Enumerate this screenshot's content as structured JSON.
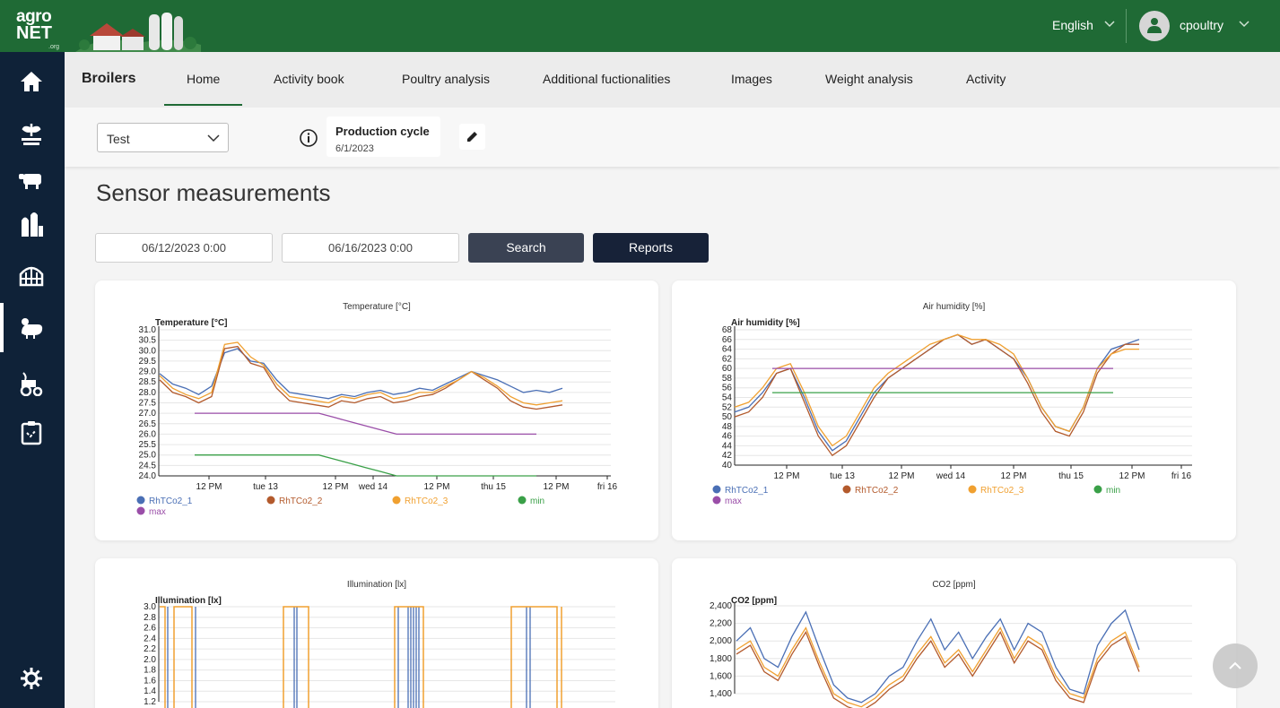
{
  "header": {
    "logo_line1": "agro",
    "logo_line2": "NET",
    "logo_suffix": ".org",
    "language": "English",
    "username": "cpoultry"
  },
  "sidebar": {
    "icons": [
      "home-icon",
      "seedling-icon",
      "livestock-icon",
      "silo-icon",
      "greenhouse-icon",
      "poultry-icon",
      "tractor-icon",
      "clipboard-icon",
      "gear-icon"
    ]
  },
  "nav": {
    "brand": "Broilers",
    "tabs": [
      "Home",
      "Activity book",
      "Poultry analysis",
      "Additional fuctionalities",
      "Images",
      "Weight analysis",
      "Activity"
    ],
    "active_tab": "Home"
  },
  "filters": {
    "object_select": "Test",
    "production_cycle_label": "Production cycle",
    "production_cycle_date": "6/1/2023"
  },
  "main": {
    "title": "Sensor measurements",
    "date_from": "06/12/2023 0:00",
    "date_to": "06/16/2023 0:00",
    "search_label": "Search",
    "reports_label": "Reports"
  },
  "colors": {
    "rhtco2_1": "#4a6fb5",
    "rhtco2_2": "#b35a2c",
    "rhtco2_3": "#f0a030",
    "min": "#3aa048",
    "max": "#9a4ea8"
  },
  "chart_data": [
    {
      "type": "line",
      "title": "Temperature [°C]",
      "ylabel": "Temperature [°C]",
      "ylim": [
        24.0,
        31.0
      ],
      "yticks": [
        "31.0",
        "30.5",
        "30.0",
        "29.5",
        "29.0",
        "28.5",
        "28.0",
        "27.5",
        "27.0",
        "26.5",
        "26.0",
        "25.5",
        "25.0",
        "24.5",
        "24.0"
      ],
      "xticks": [
        "12 PM",
        "tue 13",
        "12 PM",
        "wed 14",
        "12 PM",
        "thu 15",
        "12 PM",
        "fri 16"
      ],
      "legend": [
        "RhTCo2_1",
        "RhTCo2_2",
        "RhTCo2_3",
        "min",
        "max"
      ],
      "series": [
        {
          "name": "RhTCo2_1",
          "values": [
            28.9,
            28.4,
            28.2,
            27.9,
            28.3,
            29.9,
            30.1,
            29.5,
            29.4,
            28.6,
            28.0,
            27.9,
            27.8,
            27.7,
            27.9,
            27.8,
            28.0,
            28.1,
            27.9,
            28.0,
            28.2,
            28.1,
            28.4,
            28.7,
            29.0,
            28.8,
            28.6,
            28.3,
            28.0,
            28.1,
            28.0,
            28.2
          ]
        },
        {
          "name": "RhTCo2_2",
          "values": [
            28.6,
            28.0,
            27.8,
            27.5,
            27.8,
            30.1,
            30.2,
            29.4,
            29.2,
            28.2,
            27.6,
            27.5,
            27.4,
            27.3,
            27.6,
            27.5,
            27.7,
            27.8,
            27.5,
            27.6,
            27.8,
            27.9,
            28.2,
            28.6,
            29.0,
            28.6,
            28.2,
            27.6,
            27.3,
            27.2,
            27.3,
            27.4
          ]
        },
        {
          "name": "RhTCo2_3",
          "values": [
            28.8,
            28.2,
            27.9,
            27.7,
            28.0,
            30.3,
            30.4,
            29.7,
            29.3,
            28.4,
            27.8,
            27.7,
            27.6,
            27.5,
            27.8,
            27.7,
            27.9,
            28.0,
            27.7,
            27.8,
            28.0,
            28.0,
            28.3,
            28.6,
            29.0,
            28.7,
            28.3,
            27.8,
            27.5,
            27.4,
            27.5,
            27.6
          ]
        },
        {
          "name": "min",
          "values": [
            25.0,
            25.0,
            25.0,
            25.0,
            25.0,
            25.0,
            25.0,
            25.0,
            25.0,
            24.8,
            24.6,
            24.4,
            24.2,
            24.0,
            24.0,
            24.0,
            24.0,
            24.0,
            24.0,
            24.0,
            24.0,
            24.0,
            24.0
          ]
        },
        {
          "name": "max",
          "values": [
            27.0,
            27.0,
            27.0,
            27.0,
            27.0,
            27.0,
            27.0,
            27.0,
            27.0,
            26.8,
            26.6,
            26.4,
            26.2,
            26.0,
            26.0,
            26.0,
            26.0,
            26.0,
            26.0,
            26.0,
            26.0,
            26.0,
            26.0
          ]
        }
      ]
    },
    {
      "type": "line",
      "title": "Air humidity [%]",
      "ylabel": "Air humidity [%]",
      "ylim": [
        40,
        68
      ],
      "yticks": [
        "68",
        "66",
        "64",
        "62",
        "60",
        "58",
        "56",
        "54",
        "52",
        "50",
        "48",
        "46",
        "44",
        "42",
        "40"
      ],
      "xticks": [
        "12 PM",
        "tue 13",
        "12 PM",
        "wed 14",
        "12 PM",
        "thu 15",
        "12 PM",
        "fri 16"
      ],
      "legend": [
        "RhTCo2_1",
        "RhTCo2_2",
        "RhTCo2_3",
        "min",
        "max"
      ],
      "series": [
        {
          "name": "RhTCo2_1",
          "values": [
            51,
            52,
            55,
            59,
            60,
            54,
            47,
            43,
            45,
            50,
            55,
            58,
            60,
            62,
            64,
            66,
            67,
            65,
            66,
            64,
            62,
            58,
            52,
            48,
            47,
            52,
            60,
            64,
            65,
            66
          ]
        },
        {
          "name": "RhTCo2_2",
          "values": [
            50,
            51,
            54,
            59,
            60,
            53,
            46,
            42,
            44,
            49,
            54,
            58,
            60,
            62,
            64,
            66,
            67,
            65,
            66,
            64,
            62,
            57,
            51,
            47,
            46,
            51,
            59,
            63,
            65,
            65
          ]
        },
        {
          "name": "RhTCo2_3",
          "values": [
            52,
            53,
            56,
            60,
            61,
            55,
            48,
            44,
            46,
            51,
            56,
            59,
            61,
            63,
            65,
            66,
            67,
            66,
            66,
            65,
            63,
            58,
            52,
            48,
            47,
            52,
            60,
            63,
            64,
            64
          ]
        },
        {
          "name": "max",
          "values": [
            60,
            60,
            60,
            60,
            60,
            60,
            60,
            60,
            60,
            60,
            60,
            60,
            60,
            60,
            60,
            60,
            60,
            60,
            60,
            60,
            60
          ]
        },
        {
          "name": "min",
          "values": [
            55,
            55,
            55,
            55,
            55,
            55,
            55,
            55,
            55,
            55,
            55,
            55,
            55,
            55,
            55,
            55,
            55,
            55,
            55,
            55,
            55
          ]
        }
      ]
    },
    {
      "type": "line",
      "title": "Illumination [lx]",
      "ylabel": "Illumination [lx]",
      "yticks": [
        "3.0",
        "2.8",
        "2.6",
        "2.4",
        "2.2",
        "2.0",
        "1.8",
        "1.6",
        "1.4",
        "1.2"
      ]
    },
    {
      "type": "line",
      "title": "CO2 [ppm]",
      "ylabel": "CO2 [ppm]",
      "yticks": [
        "2,400",
        "2,200",
        "2,000",
        "1,800",
        "1,600",
        "1,400"
      ],
      "series": [
        {
          "name": "RhTCo2_1",
          "values": [
            2000,
            2150,
            1800,
            1700,
            2050,
            2330,
            1900,
            1500,
            1350,
            1300,
            1400,
            1600,
            1700,
            2000,
            2250,
            1900,
            2100,
            1800,
            2050,
            2250,
            1900,
            2200,
            2100,
            1700,
            1450,
            1400,
            1950,
            2200,
            2350,
            1900
          ]
        },
        {
          "name": "RhTCo2_3",
          "values": [
            1900,
            2000,
            1700,
            1600,
            1900,
            2150,
            1750,
            1400,
            1300,
            1250,
            1350,
            1500,
            1600,
            1850,
            2050,
            1750,
            1900,
            1650,
            1900,
            2150,
            1800,
            2050,
            1950,
            1600,
            1400,
            1350,
            1800,
            2000,
            2100,
            1700
          ]
        },
        {
          "name": "RhTCo2_2",
          "values": [
            1850,
            1950,
            1650,
            1550,
            1850,
            2100,
            1700,
            1350,
            1250,
            1200,
            1300,
            1450,
            1550,
            1800,
            2000,
            1700,
            1850,
            1600,
            1850,
            2100,
            1750,
            2000,
            1900,
            1550,
            1350,
            1300,
            1750,
            1950,
            2050,
            1650
          ]
        }
      ]
    }
  ]
}
